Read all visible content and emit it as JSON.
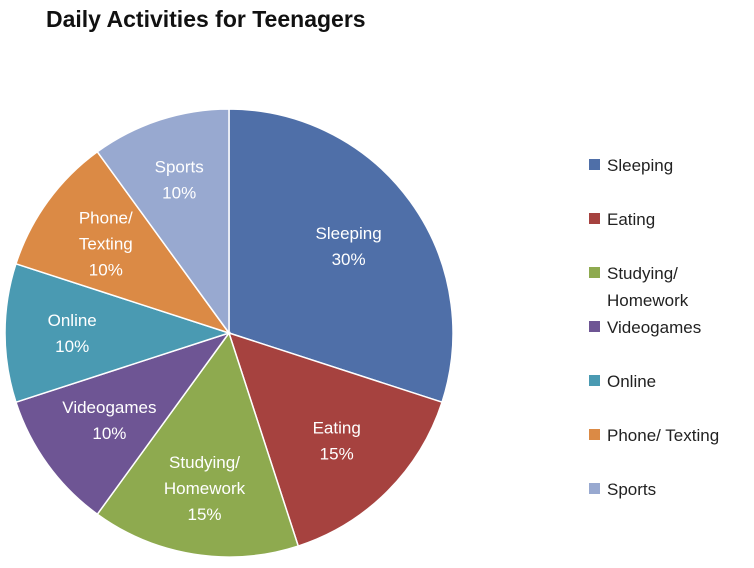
{
  "chart_data": {
    "type": "pie",
    "title": "Daily Activities for Teenagers",
    "slices": [
      {
        "name": "Sleeping",
        "value": 30,
        "label_lines": [
          "Sleeping",
          "30%"
        ],
        "legend_lines": [
          "Sleeping"
        ],
        "color": "#4F6FA8"
      },
      {
        "name": "Eating",
        "value": 15,
        "label_lines": [
          "Eating",
          "15%"
        ],
        "legend_lines": [
          "Eating"
        ],
        "color": "#A6423F"
      },
      {
        "name": "Studying/ Homework",
        "value": 15,
        "label_lines": [
          "Studying/",
          "Homework",
          "15%"
        ],
        "legend_lines": [
          "Studying/",
          "Homework"
        ],
        "color": "#8EAA4F"
      },
      {
        "name": "Videogames",
        "value": 10,
        "label_lines": [
          "Videogames",
          "10%"
        ],
        "legend_lines": [
          "Videogames"
        ],
        "color": "#6E5594"
      },
      {
        "name": "Online",
        "value": 10,
        "label_lines": [
          "Online",
          "10%"
        ],
        "legend_lines": [
          "Online"
        ],
        "color": "#4A9AB2"
      },
      {
        "name": "Phone/ Texting",
        "value": 10,
        "label_lines": [
          "Phone/",
          "Texting",
          "10%"
        ],
        "legend_lines": [
          "Phone/ Texting"
        ],
        "color": "#DB8A45"
      },
      {
        "name": "Sports",
        "value": 10,
        "label_lines": [
          "Sports",
          "10%"
        ],
        "legend_lines": [
          "Sports"
        ],
        "color": "#98A9D0"
      }
    ],
    "legend_position": "right"
  }
}
